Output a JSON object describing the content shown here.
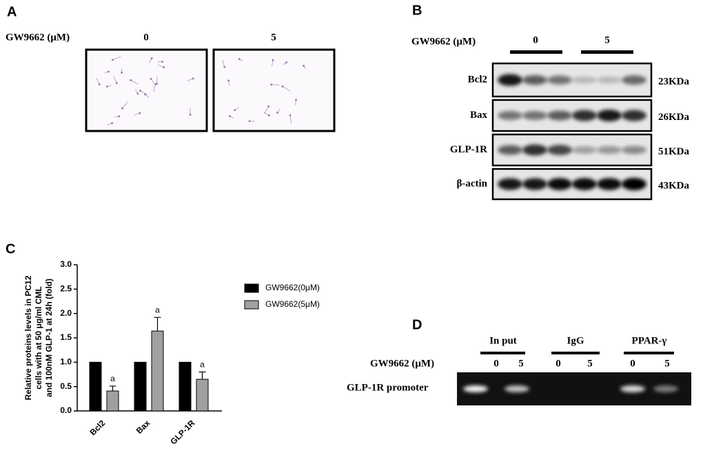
{
  "panel_a": {
    "label": "A",
    "treatment": "GW9662 (μM)",
    "doses": [
      "0",
      "5"
    ]
  },
  "panel_b": {
    "label": "B",
    "treatment": "GW9662 (μM)",
    "doses": [
      "0",
      "5"
    ],
    "proteins": [
      "Bcl2",
      "Bax",
      "GLP-1R",
      "β-actin"
    ],
    "sizes": [
      "23KDa",
      "26KDa",
      "51KDa",
      "43KDa"
    ]
  },
  "chart_data": {
    "type": "bar",
    "panel_label": "C",
    "y_label": [
      "Relative proteins levels in PC12",
      "cells with at 50 μg/ml CML",
      "and 100nM GLP-1 at 24h (fold)"
    ],
    "categories": [
      "Bcl2",
      "Bax",
      "GLP-1R"
    ],
    "series": [
      {
        "name": "GW9662(0μM)",
        "color": "#000000",
        "values": [
          1.0,
          1.0,
          1.0
        ]
      },
      {
        "name": "GW9662(5μM)",
        "color": "#a0a0a0",
        "values": [
          0.41,
          1.64,
          0.65
        ],
        "errors": [
          0.1,
          0.28,
          0.15
        ]
      }
    ],
    "annotations": [
      "a",
      "a",
      "a"
    ],
    "ylim": [
      0,
      3.0
    ],
    "yticks": [
      {
        "value": 0,
        "label": "0.0"
      },
      {
        "value": 0.5,
        "label": "0.5"
      },
      {
        "value": 1,
        "label": "1.0"
      },
      {
        "value": 1.5,
        "label": "1.5"
      },
      {
        "value": 2,
        "label": "2.0"
      },
      {
        "value": 2.5,
        "label": "2.5"
      },
      {
        "value": 3,
        "label": "3.0"
      }
    ],
    "legend": "upper right"
  },
  "panel_d": {
    "label": "D",
    "groups": [
      "In put",
      "IgG",
      "PPAR-γ"
    ],
    "treatment": "GW9662 (μM)",
    "doses": [
      "0",
      "5",
      "0",
      "5",
      "0",
      "5"
    ],
    "row_label": "GLP-1R promoter"
  }
}
